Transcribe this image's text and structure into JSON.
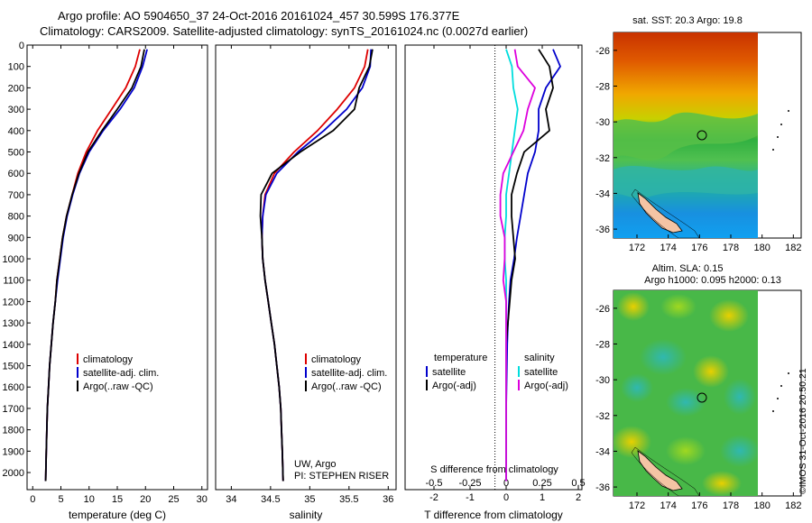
{
  "header": {
    "title_line1": "Argo profile: AO 5904650_37 24-Oct-2016 20161024_457 30.599S 176.377E",
    "title_line2": "Climatology: CARS2009. Satellite-adjusted climatology: synTS_20161024.nc (0.0027d earlier)"
  },
  "footer": {
    "owner": "UW, Argo",
    "pi": "PI: STEPHEN RISER",
    "watermark": "©IMOS 31-Oct-2016 20:50:21"
  },
  "map_titles": {
    "sst": "sat. SST: 20.3 Argo: 19.8",
    "sla_line1": "Altim. SLA: 0.15",
    "sla_line2": "Argo h1000: 0.095 h2000: 0.13"
  },
  "colors": {
    "climatology": "#dd0000",
    "satellite": "#0000cc",
    "argo": "#000000",
    "sal_satellite": "#00dddd",
    "sal_argo": "#dd00dd",
    "land": "#f4c4a4"
  },
  "chart_data": [
    {
      "type": "line",
      "panel": "temperature",
      "xlabel": "temperature (deg C)",
      "ylabel": "",
      "xlim": [
        -1,
        31
      ],
      "ylim": [
        0,
        2080
      ],
      "xticks": [
        0,
        5,
        10,
        15,
        20,
        25,
        30
      ],
      "xtick_labels": [
        "0",
        "5",
        "10",
        "15",
        "20",
        "25",
        "30"
      ],
      "yticks": [
        0,
        100,
        200,
        300,
        400,
        500,
        600,
        700,
        800,
        900,
        1000,
        1100,
        1200,
        1300,
        1400,
        1500,
        1600,
        1700,
        1800,
        1900,
        2000
      ],
      "ytick_labels": [
        "0",
        "100",
        "200",
        "300",
        "400",
        "500",
        "600",
        "700",
        "800",
        "900",
        "1000",
        "1100",
        "1200",
        "1300",
        "1400",
        "1500",
        "1600",
        "1700",
        "1800",
        "1900",
        "2000"
      ],
      "legend": [
        "climatology",
        "satellite-adj. clim.",
        "Argo(..raw -QC)"
      ],
      "legend_position": "lower-center",
      "series": [
        {
          "name": "climatology",
          "color": "#dd0000",
          "x": [
            19.0,
            18.2,
            16.5,
            14.0,
            11.5,
            9.5,
            8.0,
            7.0,
            6.0,
            5.3,
            4.8,
            4.3,
            4.0,
            3.6,
            3.3,
            3.0,
            2.8,
            2.6,
            2.5,
            2.4,
            2.3
          ],
          "y": [
            20,
            100,
            200,
            300,
            400,
            500,
            600,
            700,
            800,
            900,
            1000,
            1100,
            1200,
            1300,
            1400,
            1500,
            1600,
            1700,
            1800,
            1900,
            2040
          ]
        },
        {
          "name": "satellite-adj. clim.",
          "color": "#0000cc",
          "x": [
            20.3,
            19.5,
            18.0,
            15.5,
            12.5,
            10.0,
            8.3,
            7.1,
            6.1,
            5.4,
            4.9,
            4.4,
            4.0,
            3.6,
            3.3,
            3.0,
            2.8,
            2.6,
            2.5,
            2.4,
            2.3
          ],
          "y": [
            20,
            100,
            200,
            300,
            400,
            500,
            600,
            700,
            800,
            900,
            1000,
            1100,
            1200,
            1300,
            1400,
            1500,
            1600,
            1700,
            1800,
            1900,
            2040
          ]
        },
        {
          "name": "Argo(..raw -QC)",
          "color": "#000000",
          "x": [
            19.8,
            19.2,
            17.6,
            15.0,
            12.3,
            9.8,
            8.2,
            7.0,
            6.0,
            5.3,
            4.8,
            4.3,
            4.0,
            3.6,
            3.3,
            3.0,
            2.8,
            2.6,
            2.5,
            2.4,
            2.3
          ],
          "y": [
            20,
            100,
            200,
            300,
            400,
            500,
            600,
            700,
            800,
            900,
            1000,
            1100,
            1200,
            1300,
            1400,
            1500,
            1600,
            1700,
            1800,
            1900,
            2040
          ]
        }
      ]
    },
    {
      "type": "line",
      "panel": "salinity",
      "xlabel": "salinity",
      "ylabel": "",
      "xlim": [
        33.8,
        36.1
      ],
      "ylim": [
        0,
        2080
      ],
      "xticks": [
        34,
        34.5,
        35,
        35.5,
        36
      ],
      "xtick_labels": [
        "34",
        "34.5",
        "35",
        "35.5",
        "36"
      ],
      "legend": [
        "climatology",
        "satellite-adj. clim.",
        "Argo(..raw -QC)"
      ],
      "legend_position": "lower-center",
      "series": [
        {
          "name": "climatology",
          "color": "#dd0000",
          "x": [
            35.74,
            35.7,
            35.57,
            35.35,
            35.1,
            34.8,
            34.55,
            34.43,
            34.4,
            34.39,
            34.4,
            34.43,
            34.47,
            34.51,
            34.55,
            34.58,
            34.61,
            34.63,
            34.64,
            34.65,
            34.66
          ],
          "y": [
            20,
            100,
            200,
            300,
            400,
            500,
            600,
            700,
            800,
            900,
            1000,
            1100,
            1200,
            1300,
            1400,
            1500,
            1600,
            1700,
            1800,
            1900,
            2040
          ]
        },
        {
          "name": "satellite-adj. clim.",
          "color": "#0000cc",
          "x": [
            35.78,
            35.77,
            35.67,
            35.47,
            35.18,
            34.85,
            34.58,
            34.44,
            34.4,
            34.39,
            34.4,
            34.43,
            34.47,
            34.51,
            34.55,
            34.58,
            34.61,
            34.63,
            34.64,
            34.65,
            34.66
          ],
          "y": [
            20,
            100,
            200,
            300,
            400,
            500,
            600,
            700,
            800,
            900,
            1000,
            1100,
            1200,
            1300,
            1400,
            1500,
            1600,
            1700,
            1800,
            1900,
            2040
          ]
        },
        {
          "name": "Argo(..raw -QC)",
          "color": "#000000",
          "x": [
            35.8,
            35.76,
            35.63,
            35.57,
            35.3,
            34.88,
            34.52,
            34.38,
            34.37,
            34.39,
            34.4,
            34.43,
            34.47,
            34.51,
            34.55,
            34.58,
            34.61,
            34.63,
            34.64,
            34.65,
            34.66
          ],
          "y": [
            20,
            100,
            200,
            300,
            400,
            500,
            600,
            700,
            800,
            900,
            1000,
            1100,
            1200,
            1300,
            1400,
            1500,
            1600,
            1700,
            1800,
            1900,
            2040
          ]
        }
      ]
    },
    {
      "type": "line",
      "panel": "differences",
      "xlabel": "T difference from climatology",
      "xlabel_top": "S difference from climatology",
      "xlim": [
        -2.8,
        2.1
      ],
      "ylim": [
        0,
        2080
      ],
      "xticks": [
        -2,
        -1,
        0,
        1,
        2
      ],
      "xtick_labels": [
        "-2",
        "-1",
        "0",
        "1",
        "2"
      ],
      "xticks_s": [
        -0.5,
        -0.25,
        0,
        0.25,
        0.5
      ],
      "xtick_s_labels": [
        "-0.5",
        "-0.25",
        "0",
        "0.25",
        "0.5"
      ],
      "legend_temperature_title": "temperature",
      "legend_salinity_title": "salinity",
      "legend": [
        "satellite",
        "Argo(-adj)",
        "satellite",
        "Argo(-adj)"
      ],
      "legend_position": "lower-center",
      "series": [
        {
          "name": "satellite",
          "group": "temperature",
          "color": "#0000cc",
          "x": [
            1.3,
            1.5,
            1.1,
            0.9,
            0.9,
            0.8,
            0.6,
            0.5,
            0.4,
            0.3,
            0.22,
            0.12,
            0.08,
            0.05,
            0.03,
            0.02,
            0.01,
            0.0,
            0.0,
            0.0,
            0.0
          ],
          "y": [
            20,
            100,
            200,
            300,
            400,
            500,
            600,
            700,
            800,
            900,
            1000,
            1100,
            1200,
            1300,
            1400,
            1500,
            1600,
            1700,
            1800,
            1900,
            2040
          ]
        },
        {
          "name": "Argo(-adj)",
          "group": "temperature",
          "color": "#000000",
          "x": [
            0.9,
            1.2,
            1.3,
            1.1,
            1.2,
            0.5,
            0.3,
            0.15,
            0.15,
            0.2,
            0.25,
            0.15,
            0.1,
            0.05,
            0.0,
            0.0,
            0.0,
            0.0,
            0.0,
            0.0,
            0.0
          ],
          "y": [
            20,
            100,
            200,
            300,
            400,
            500,
            600,
            700,
            800,
            900,
            1000,
            1100,
            1200,
            1300,
            1400,
            1500,
            1600,
            1700,
            1800,
            1900,
            2040
          ]
        },
        {
          "name": "satellite",
          "group": "salinity",
          "color": "#00dddd",
          "x": [
            0.0,
            0.04,
            0.05,
            0.08,
            0.06,
            0.04,
            0.02,
            0.0,
            0.0,
            -0.01,
            -0.01,
            0.0,
            0.0,
            0.0,
            0.0,
            0.0,
            0.0,
            0.0,
            0.0,
            0.0,
            0.0
          ],
          "y": [
            20,
            100,
            200,
            300,
            400,
            500,
            600,
            700,
            800,
            900,
            1000,
            1100,
            1200,
            1300,
            1400,
            1500,
            1600,
            1700,
            1800,
            1900,
            2040
          ]
        },
        {
          "name": "Argo(-adj)",
          "group": "salinity",
          "color": "#dd00dd",
          "x": [
            0.06,
            0.08,
            0.2,
            0.15,
            0.12,
            0.05,
            -0.02,
            -0.04,
            -0.04,
            -0.01,
            -0.01,
            -0.02,
            0.0,
            0.0,
            0.0,
            0.0,
            0.0,
            0.0,
            0.0,
            0.0,
            0.0
          ],
          "y": [
            20,
            100,
            200,
            300,
            400,
            500,
            600,
            700,
            800,
            900,
            1000,
            1100,
            1200,
            1300,
            1400,
            1500,
            1600,
            1700,
            1800,
            1900,
            2040
          ]
        }
      ]
    },
    {
      "type": "heatmap",
      "panel": "sst-map",
      "title": "sat. SST: 20.3 Argo: 19.8",
      "xlim": [
        170.5,
        182.5
      ],
      "ylim": [
        -36.5,
        -25
      ],
      "xticks": [
        172,
        174,
        176,
        178,
        180,
        182
      ],
      "xtick_labels": [
        "172",
        "174",
        "176",
        "178",
        "180",
        "182"
      ],
      "yticks": [
        -26,
        -28,
        -30,
        -32,
        -34,
        -36
      ],
      "ytick_labels": [
        "-26",
        "-28",
        "-30",
        "-32",
        "-34",
        "-36"
      ],
      "argo_position": [
        176.377,
        -30.599
      ]
    },
    {
      "type": "heatmap",
      "panel": "sla-map",
      "title": "Altim. SLA: 0.15",
      "subtitle": "Argo h1000: 0.095 h2000: 0.13",
      "xlim": [
        170.5,
        182.5
      ],
      "ylim": [
        -36.5,
        -25
      ],
      "xticks": [
        172,
        174,
        176,
        178,
        180,
        182
      ],
      "xtick_labels": [
        "172",
        "174",
        "176",
        "178",
        "180",
        "182"
      ],
      "yticks": [
        -26,
        -28,
        -30,
        -32,
        -34,
        -36
      ],
      "ytick_labels": [
        "-26",
        "-28",
        "-30",
        "-32",
        "-34",
        "-36"
      ],
      "argo_position": [
        176.377,
        -30.599
      ]
    }
  ]
}
